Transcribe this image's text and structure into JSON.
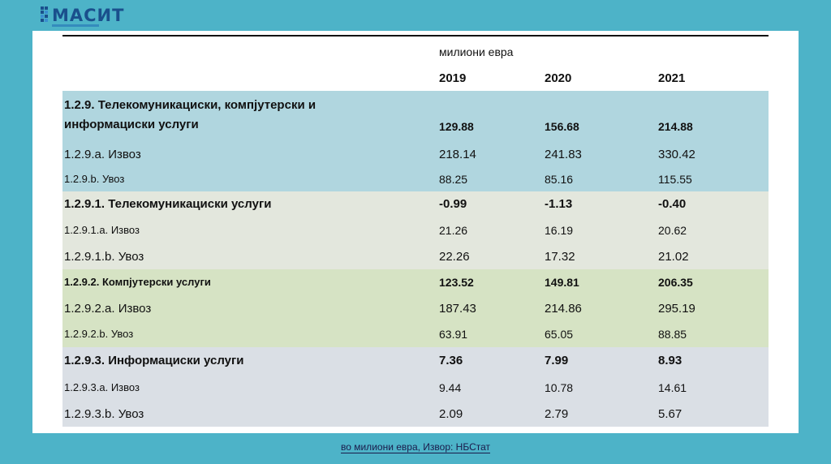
{
  "logo": {
    "text": "МАСИТ"
  },
  "table": {
    "unit": "милиони евра",
    "years": [
      "2019",
      "2020",
      "2021"
    ],
    "rows": [
      {
        "label": "1.2.9. Телекомуникациски, компјутерски и",
        "label2": "информациски услуги",
        "v": [
          "129.88",
          "156.68",
          "214.88"
        ]
      },
      {
        "label": "1.2.9.a. Извоз",
        "v": [
          "218.14",
          "241.83",
          "330.42"
        ]
      },
      {
        "label": "1.2.9.b. Увоз",
        "v": [
          "88.25",
          "85.16",
          "115.55"
        ]
      },
      {
        "label": "1.2.9.1. Телекомуникациски услуги",
        "v": [
          "-0.99",
          "-1.13",
          "-0.40"
        ]
      },
      {
        "label": "1.2.9.1.a. Извоз",
        "v": [
          "21.26",
          "16.19",
          "20.62"
        ]
      },
      {
        "label": "1.2.9.1.b. Увоз",
        "v": [
          "22.26",
          "17.32",
          "21.02"
        ]
      },
      {
        "label": "1.2.9.2. Компјутерски услуги",
        "v": [
          "123.52",
          "149.81",
          "206.35"
        ]
      },
      {
        "label": "1.2.9.2.a. Извоз",
        "v": [
          "187.43",
          "214.86",
          "295.19"
        ]
      },
      {
        "label": "1.2.9.2.b. Увоз",
        "v": [
          "63.91",
          "65.05",
          "88.85"
        ]
      },
      {
        "label": "1.2.9.3. Информациски услуги",
        "v": [
          "7.36",
          "7.99",
          "8.93"
        ]
      },
      {
        "label": "1.2.9.3.a. Извоз",
        "v": [
          "9.44",
          "10.78",
          "14.61"
        ]
      },
      {
        "label": "1.2.9.3.b. Увоз",
        "v": [
          "2.09",
          "2.79",
          "5.67"
        ]
      }
    ]
  },
  "caption": "во милиони евра, Извор: НБСтат",
  "colors": {
    "background": "#4db3c8",
    "group1": "#b0d6df",
    "group2": "#e3e7dd",
    "group3": "#d6e3c4",
    "group4": "#dadfe5"
  }
}
